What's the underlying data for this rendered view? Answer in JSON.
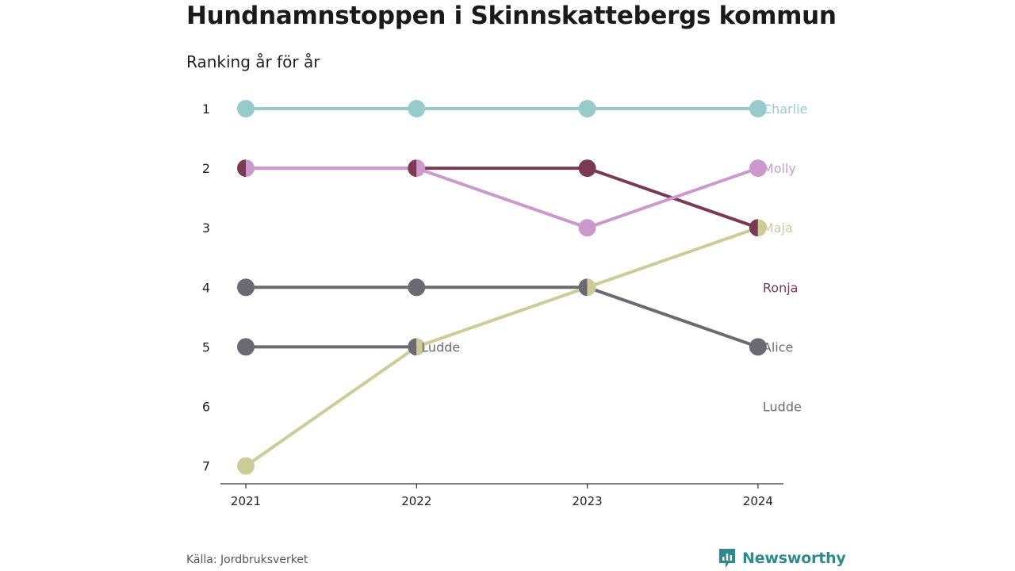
{
  "header": {
    "title": "Hundnamnstoppen i Skinnskattebergs kommun",
    "subtitle": "Ranking år för år"
  },
  "footer": {
    "source": "Källa: Jordbruksverket",
    "brand": "Newsworthy",
    "brand_icon": "chart-speech-bubble-icon",
    "brand_color": "#2e8a8c"
  },
  "chart_data": {
    "type": "line",
    "x": [
      "2021",
      "2022",
      "2023",
      "2024"
    ],
    "y_ticks": [
      1,
      2,
      3,
      4,
      5,
      6,
      7
    ],
    "ylim": [
      1,
      7
    ],
    "y_inverted": true,
    "grid": false,
    "series": [
      {
        "name": "Charlie",
        "color": "#97cbcb",
        "ranks": [
          1,
          1,
          1,
          1
        ]
      },
      {
        "name": "Ronja",
        "color": "#7a3b52",
        "ranks": [
          2,
          2,
          2,
          3
        ]
      },
      {
        "name": "Molly",
        "color": "#cc99cc",
        "ranks": [
          2,
          2,
          3,
          2
        ]
      },
      {
        "name": "Alice",
        "color": "#6b6a73",
        "ranks": [
          4,
          4,
          4,
          5
        ]
      },
      {
        "name": "Ludde",
        "color": "#6b6a73",
        "ranks": [
          5,
          5,
          null,
          null
        ]
      },
      {
        "name": "Maja",
        "color": "#cccc99",
        "ranks": [
          7,
          5,
          4,
          3
        ]
      }
    ],
    "end_labels": [
      {
        "text": "Charlie",
        "rank": 1,
        "color": "#97cbcb"
      },
      {
        "text": "Molly",
        "rank": 2,
        "color": "#cc99cc"
      },
      {
        "text": "Maja",
        "rank": 3,
        "color": "#cccc99"
      },
      {
        "text": "Ronja",
        "rank": 4,
        "color": "#7a3b52"
      },
      {
        "text": "Alice",
        "rank": 5,
        "color": "#6b6a73"
      },
      {
        "text": "Ludde",
        "rank": 6,
        "color": "#6b6a73"
      }
    ],
    "inline_labels": [
      {
        "text": "Ludde",
        "year": "2022",
        "rank": 5,
        "color": "#6b6a73"
      }
    ],
    "axis_color": "#333333",
    "tick_label_color": "#222222"
  }
}
